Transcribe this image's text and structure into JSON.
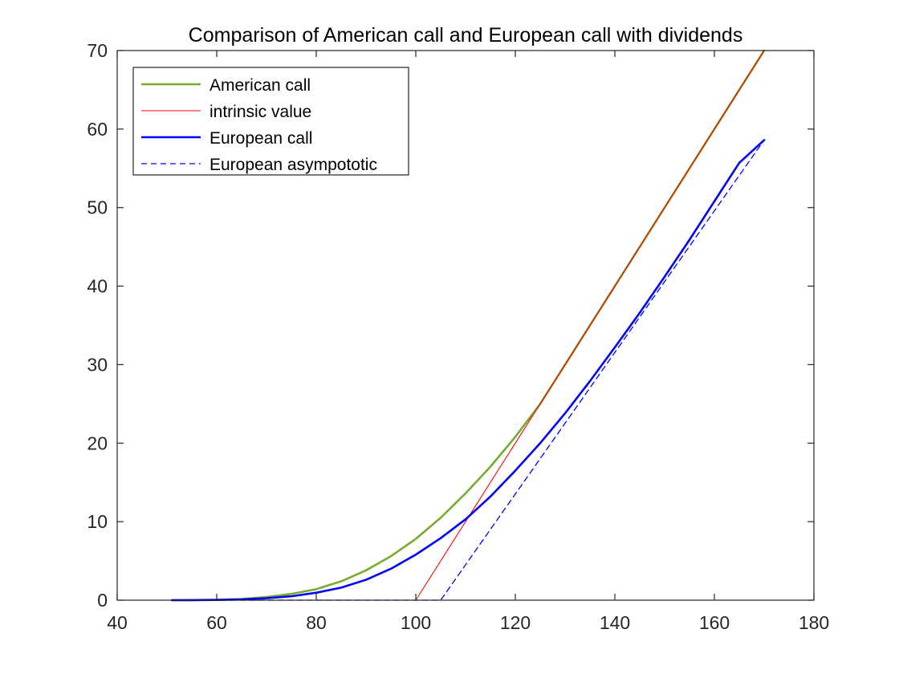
{
  "chart_data": {
    "type": "line",
    "title": "Comparison of American call and European call with dividends",
    "xlabel": "",
    "ylabel": "",
    "xlim": [
      40,
      180
    ],
    "ylim": [
      0,
      70
    ],
    "xticks": [
      40,
      60,
      80,
      100,
      120,
      140,
      160,
      180
    ],
    "yticks": [
      0,
      10,
      20,
      30,
      40,
      50,
      60,
      70
    ],
    "grid": false,
    "legend_position": "top-left",
    "series": [
      {
        "name": "American call",
        "color": "#77ac30",
        "style": "solid",
        "x": [
          51,
          55,
          60,
          65,
          70,
          75,
          80,
          85,
          90,
          95,
          100,
          105,
          110,
          115,
          120,
          125,
          130,
          135,
          140,
          145,
          150,
          155,
          160,
          165,
          170
        ],
        "y": [
          0,
          0.01,
          0.05,
          0.15,
          0.4,
          0.8,
          1.4,
          2.4,
          3.8,
          5.6,
          7.8,
          10.5,
          13.6,
          17.0,
          20.8,
          25.0,
          30.0,
          35.0,
          40.0,
          45.0,
          50.0,
          55.0,
          60.0,
          65.0,
          70.0
        ]
      },
      {
        "name": "intrinsic value",
        "color": "#ff0000",
        "style": "solid-thin",
        "x": [
          51,
          100,
          170
        ],
        "y": [
          0,
          0,
          70
        ]
      },
      {
        "name": "European call",
        "color": "#0000ff",
        "style": "solid",
        "x": [
          51,
          55,
          60,
          65,
          70,
          75,
          80,
          85,
          90,
          95,
          100,
          105,
          110,
          115,
          120,
          125,
          130,
          135,
          140,
          145,
          150,
          155,
          160,
          165,
          170
        ],
        "y": [
          0,
          0.01,
          0.03,
          0.1,
          0.25,
          0.5,
          0.95,
          1.6,
          2.6,
          4.0,
          5.8,
          7.9,
          10.3,
          13.2,
          16.5,
          20.0,
          23.8,
          27.9,
          32.2,
          36.6,
          41.2,
          45.9,
          50.8,
          55.7,
          58.6
        ]
      },
      {
        "name": "European asympototic",
        "color": "#0000ff",
        "style": "dashed",
        "x": [
          51,
          105,
          170
        ],
        "y": [
          0,
          0,
          58.6
        ]
      }
    ]
  }
}
